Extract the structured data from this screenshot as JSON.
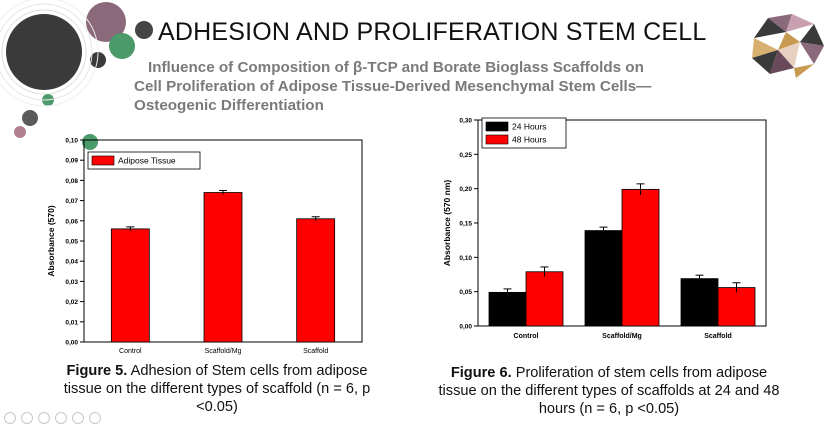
{
  "slide": {
    "title": "ADHESION AND PROLIFERATION STEM CELL",
    "subtitle_line1": "Influence of Composition of β-TCP and Borate Bioglass Scaffolds on",
    "subtitle_line2": "Cell Proliferation of Adipose Tissue-Derived Mesenchymal Stem Cells—",
    "subtitle_line3": "Osteogenic Differentiation"
  },
  "colors": {
    "red": "#ff0000",
    "black": "#000000",
    "deco_dark": "#3a3a3a",
    "deco_green": "#4a9a6a",
    "deco_mauve": "#8a6a7a"
  },
  "figure5": {
    "caption_label": "Figure 5.",
    "caption_text": " Adhesion of Stem cells from adipose tissue on the different types of scaffold (n = 6, p <0.05)"
  },
  "figure6": {
    "caption_label": "Figure 6.",
    "caption_text": " Proliferation of stem cells from adipose tissue on the different types of scaffolds at 24 and 48 hours (n = 6, p <0.05)"
  },
  "chart_data": [
    {
      "type": "bar",
      "categories": [
        "Control",
        "Scaffold/Mg",
        "Scaffold"
      ],
      "series": [
        {
          "name": "Adipose Tissue",
          "values": [
            0.056,
            0.074,
            0.061
          ],
          "errors": [
            0.001,
            0.001,
            0.001
          ],
          "color": "#ff0000"
        }
      ],
      "ylabel": "Absorbance (570)",
      "xlabel": "",
      "ylim": [
        0,
        0.1
      ],
      "yticks": [
        "0,00",
        "0,01",
        "0,02",
        "0,03",
        "0,04",
        "0,05",
        "0,06",
        "0,07",
        "0,08",
        "0,09",
        "0,10"
      ],
      "legend": "top-left"
    },
    {
      "type": "bar",
      "categories": [
        "Control",
        "Scaffold/Mg",
        "Scaffold"
      ],
      "series": [
        {
          "name": "24 Hours",
          "values": [
            0.049,
            0.139,
            0.069
          ],
          "errors": [
            0.005,
            0.005,
            0.005
          ],
          "color": "#000000"
        },
        {
          "name": "48 Hours",
          "values": [
            0.079,
            0.199,
            0.056
          ],
          "errors": [
            0.007,
            0.008,
            0.007
          ],
          "color": "#ff0000"
        }
      ],
      "ylabel": "Absorbance (570 nm)",
      "xlabel": "",
      "ylim": [
        0,
        0.3
      ],
      "yticks": [
        "0,00",
        "0,05",
        "0,10",
        "0,15",
        "0,20",
        "0,25",
        "0,30"
      ],
      "legend": "top-left"
    }
  ]
}
